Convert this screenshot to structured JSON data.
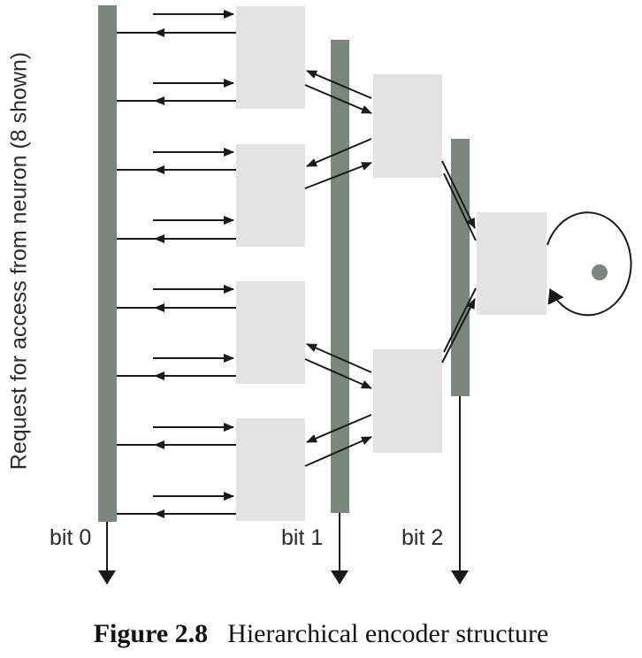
{
  "side_label": "Request for access from neuron (8 shown)",
  "bit_labels": [
    "bit 0",
    "bit 1",
    "bit 2"
  ],
  "caption": {
    "number": "Figure 2.8",
    "text": "Hierarchical encoder structure"
  },
  "colors": {
    "bus": "#7a877d",
    "box": "#e3e3e3",
    "line": "#1a1a1a",
    "dot": "#7a877d"
  }
}
